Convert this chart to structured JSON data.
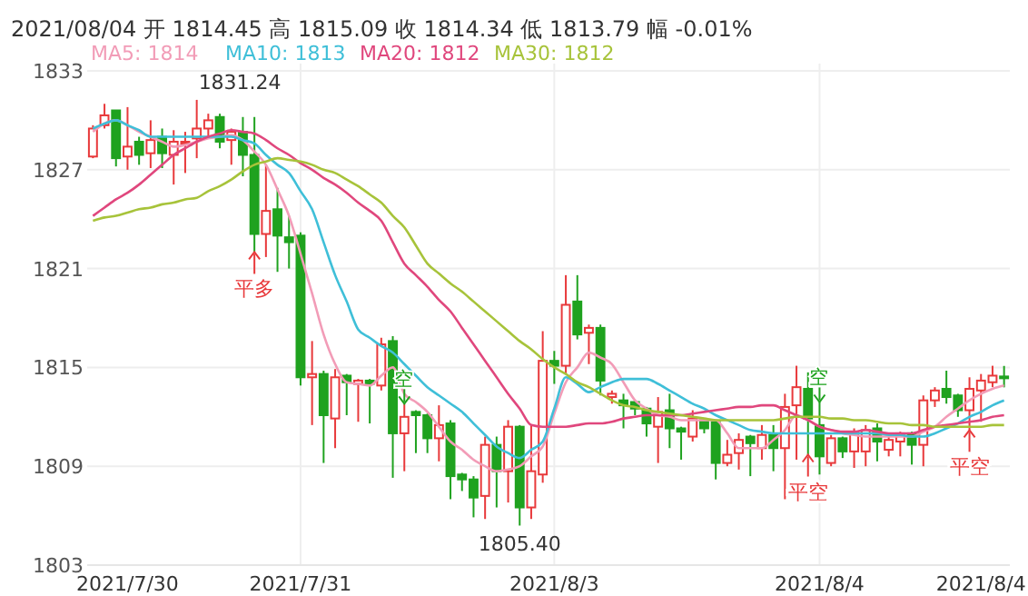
{
  "chart_data": {
    "type": "candlestick",
    "title": "2021/08/04 开 1814.45 高 1815.09 收 1814.34 低 1813.79 幅 -0.01%",
    "categories": [
      null,
      null,
      null,
      "2021/7/30",
      null,
      null,
      null,
      null,
      null,
      null,
      null,
      null,
      null,
      null,
      null,
      null,
      null,
      null,
      "2021/7/31",
      null,
      null,
      null,
      null,
      null,
      null,
      null,
      null,
      null,
      null,
      null,
      null,
      null,
      null,
      null,
      null,
      null,
      null,
      null,
      null,
      null,
      "2021/8/3",
      null,
      null,
      null,
      null,
      null,
      null,
      null,
      null,
      null,
      null,
      null,
      null,
      null,
      null,
      null,
      null,
      null,
      null,
      null,
      null,
      null,
      null,
      "2021/8/4",
      null,
      null,
      null,
      null,
      null,
      null,
      null,
      null,
      null,
      null,
      null,
      null,
      null,
      "2021/8/4",
      null,
      null
    ],
    "ylim": [
      1803,
      1833
    ],
    "yticks": [
      1803,
      1809,
      1815,
      1821,
      1827,
      1833
    ],
    "grid": "y",
    "legend": "top left",
    "ref_lines": [
      {
        "axis": "x",
        "value": "2021/7/31",
        "color": "#eeeeee"
      },
      {
        "axis": "x",
        "value": "2021/8/3",
        "color": "#eeeeee"
      },
      {
        "axis": "x",
        "value": "2021/8/4",
        "color": "#eeeeee"
      }
    ],
    "ohlc": [
      [
        1827.8,
        1829.7,
        1827.7,
        1829.5
      ],
      [
        1829.7,
        1831.0,
        1829.5,
        1830.3
      ],
      [
        1830.6,
        1830.6,
        1827.2,
        1827.7
      ],
      [
        1827.8,
        1830.8,
        1827.0,
        1828.4
      ],
      [
        1828.7,
        1829.0,
        1827.3,
        1827.9
      ],
      [
        1828.0,
        1830.0,
        1827.1,
        1828.8
      ],
      [
        1829.0,
        1829.5,
        1827.1,
        1828.0
      ],
      [
        1827.9,
        1829.4,
        1826.1,
        1828.7
      ],
      [
        1828.6,
        1829.3,
        1826.8,
        1828.7
      ],
      [
        1828.9,
        1831.24,
        1827.7,
        1829.5
      ],
      [
        1829.5,
        1830.4,
        1829.0,
        1830.0
      ],
      [
        1830.2,
        1830.4,
        1828.3,
        1828.7
      ],
      [
        1828.8,
        1829.5,
        1827.3,
        1829.3
      ],
      [
        1829.3,
        1830.2,
        1826.6,
        1827.9
      ],
      [
        1827.9,
        1830.2,
        1822.0,
        1823.1
      ],
      [
        1823.1,
        1827.3,
        1821.7,
        1824.5
      ],
      [
        1824.6,
        1825.9,
        1820.8,
        1823.0
      ],
      [
        1822.9,
        1824.2,
        1821.0,
        1822.6
      ],
      [
        1823.0,
        1823.2,
        1813.9,
        1814.4
      ],
      [
        1814.4,
        1816.6,
        1811.5,
        1814.6
      ],
      [
        1814.6,
        1814.8,
        1809.2,
        1812.1
      ],
      [
        1811.9,
        1814.9,
        1810.1,
        1814.4
      ],
      [
        1814.5,
        1814.6,
        1812.1,
        1814.1
      ],
      [
        1814.0,
        1814.3,
        1811.7,
        1814.2
      ],
      [
        1814.2,
        1814.3,
        1811.6,
        1814.0
      ],
      [
        1813.9,
        1816.8,
        1813.6,
        1816.4
      ],
      [
        1816.6,
        1816.9,
        1808.3,
        1811.0
      ],
      [
        1811.0,
        1812.8,
        1808.7,
        1812.0
      ],
      [
        1812.3,
        1812.4,
        1809.8,
        1812.1
      ],
      [
        1812.1,
        1812.2,
        1809.8,
        1810.7
      ],
      [
        1810.7,
        1812.7,
        1809.3,
        1811.5
      ],
      [
        1811.6,
        1811.8,
        1807.0,
        1808.4
      ],
      [
        1808.5,
        1808.6,
        1807.5,
        1808.2
      ],
      [
        1808.2,
        1808.4,
        1805.9,
        1807.1
      ],
      [
        1807.2,
        1810.8,
        1805.8,
        1810.3
      ],
      [
        1810.3,
        1810.8,
        1806.5,
        1808.7
      ],
      [
        1808.7,
        1811.8,
        1806.8,
        1811.4
      ],
      [
        1811.4,
        1811.5,
        1805.4,
        1806.5
      ],
      [
        1806.5,
        1811.5,
        1805.8,
        1808.7
      ],
      [
        1808.5,
        1817.2,
        1808.0,
        1815.4
      ],
      [
        1815.4,
        1816.0,
        1814.0,
        1815.1
      ],
      [
        1815.1,
        1820.6,
        1814.6,
        1818.8
      ],
      [
        1819.0,
        1820.6,
        1816.7,
        1817.0
      ],
      [
        1817.1,
        1817.6,
        1815.2,
        1817.4
      ],
      [
        1817.4,
        1817.6,
        1813.3,
        1814.2
      ],
      [
        1813.2,
        1813.6,
        1812.8,
        1813.4
      ],
      [
        1813.0,
        1813.4,
        1811.3,
        1812.7
      ],
      [
        1812.9,
        1813.0,
        1812.1,
        1812.5
      ],
      [
        1812.5,
        1812.6,
        1810.8,
        1811.6
      ],
      [
        1811.4,
        1813.2,
        1809.2,
        1812.3
      ],
      [
        1812.4,
        1813.4,
        1810.1,
        1811.3
      ],
      [
        1811.3,
        1811.4,
        1809.4,
        1811.1
      ],
      [
        1810.8,
        1812.4,
        1810.5,
        1811.9
      ],
      [
        1811.8,
        1811.9,
        1811.0,
        1811.3
      ],
      [
        1811.7,
        1811.8,
        1808.2,
        1809.2
      ],
      [
        1809.2,
        1810.6,
        1809.0,
        1809.7
      ],
      [
        1809.8,
        1811.0,
        1808.8,
        1810.6
      ],
      [
        1810.8,
        1810.9,
        1808.4,
        1810.4
      ],
      [
        1810.1,
        1811.5,
        1809.4,
        1810.9
      ],
      [
        1810.9,
        1811.5,
        1808.7,
        1810.1
      ],
      [
        1810.1,
        1813.4,
        1807.0,
        1812.6
      ],
      [
        1812.7,
        1815.1,
        1809.4,
        1813.8
      ],
      [
        1813.7,
        1814.7,
        1809.7,
        1811.9
      ],
      [
        1811.5,
        1812.9,
        1808.5,
        1809.6
      ],
      [
        1809.2,
        1810.9,
        1809.0,
        1810.7
      ],
      [
        1810.7,
        1810.8,
        1809.5,
        1809.9
      ],
      [
        1809.9,
        1811.3,
        1808.9,
        1811.1
      ],
      [
        1809.9,
        1811.5,
        1809.0,
        1811.2
      ],
      [
        1811.3,
        1811.6,
        1809.3,
        1810.5
      ],
      [
        1810.0,
        1810.8,
        1809.6,
        1810.6
      ],
      [
        1810.5,
        1811.1,
        1809.6,
        1811.0
      ],
      [
        1811.0,
        1811.1,
        1809.1,
        1810.3
      ],
      [
        1810.3,
        1813.3,
        1809.0,
        1813.0
      ],
      [
        1813.0,
        1813.8,
        1812.6,
        1813.6
      ],
      [
        1813.7,
        1814.8,
        1812.8,
        1813.2
      ],
      [
        1813.3,
        1813.4,
        1812.0,
        1812.4
      ],
      [
        1812.4,
        1814.4,
        1811.2,
        1813.7
      ],
      [
        1813.6,
        1814.6,
        1811.7,
        1814.2
      ],
      [
        1814.1,
        1815.1,
        1813.8,
        1814.5
      ],
      [
        1814.45,
        1815.09,
        1813.79,
        1814.34
      ]
    ],
    "series": [
      {
        "type": "line",
        "name": "MA5: 1814",
        "color": "#f29cb7",
        "values": [
          1829.3,
          1829.8,
          1830.0,
          1829.7,
          1829.3,
          1829.0,
          1828.7,
          1828.4,
          1828.5,
          1828.7,
          1828.9,
          1829.0,
          1829.1,
          1828.8,
          1828.1,
          1827.3,
          1825.8,
          1824.2,
          1821.9,
          1819.5,
          1817.0,
          1815.2,
          1814.1,
          1814.0,
          1813.9,
          1814.5,
          1815.0,
          1813.4,
          1812.9,
          1812.3,
          1811.4,
          1810.5,
          1810.0,
          1809.4,
          1809.0,
          1808.7,
          1808.8,
          1809.0,
          1809.6,
          1810.2,
          1812.2,
          1814.1,
          1815.0,
          1815.9,
          1815.6,
          1815.2,
          1814.1,
          1813.0,
          1812.5,
          1812.1,
          1812.0,
          1811.8,
          1811.8,
          1811.8,
          1811.8,
          1811.0,
          1810.1,
          1810.1,
          1810.1,
          1810.6,
          1811.2,
          1812.1,
          1811.8,
          1811.4,
          1811.2,
          1811.0,
          1810.9,
          1810.8,
          1810.8,
          1810.8,
          1810.8,
          1810.8,
          1811.1,
          1811.4,
          1812.0,
          1812.5,
          1813.0,
          1813.4,
          1813.7,
          1813.9
        ]
      },
      {
        "type": "line",
        "name": "MA10: 1813",
        "color": "#3fbfd8",
        "values": [
          1829.5,
          1829.8,
          1830.0,
          1829.7,
          1829.4,
          1829.0,
          1829.0,
          1829.0,
          1829.0,
          1829.0,
          1829.0,
          1829.0,
          1829.0,
          1828.8,
          1828.6,
          1827.9,
          1827.3,
          1826.8,
          1825.7,
          1824.6,
          1822.6,
          1820.6,
          1819.0,
          1817.3,
          1816.8,
          1816.3,
          1815.9,
          1815.2,
          1814.5,
          1813.8,
          1813.3,
          1812.8,
          1812.3,
          1811.6,
          1810.9,
          1810.2,
          1809.8,
          1809.5,
          1810.0,
          1810.5,
          1812.5,
          1814.4,
          1814.0,
          1813.5,
          1813.8,
          1814.1,
          1814.3,
          1814.3,
          1814.3,
          1814.0,
          1813.6,
          1813.2,
          1812.8,
          1812.5,
          1812.1,
          1811.8,
          1811.5,
          1811.2,
          1811.1,
          1811.0,
          1811.0,
          1811.0,
          1811.0,
          1811.0,
          1811.0,
          1811.0,
          1811.0,
          1811.0,
          1811.0,
          1810.9,
          1810.9,
          1810.8,
          1810.8,
          1811.0,
          1811.3,
          1811.6,
          1812.0,
          1812.3,
          1812.7,
          1813.0
        ]
      },
      {
        "type": "line",
        "name": "MA20: 1812",
        "color": "#e0477d",
        "values": [
          1824.2,
          1824.7,
          1825.2,
          1825.6,
          1826.1,
          1826.7,
          1827.3,
          1827.9,
          1828.3,
          1828.7,
          1829.0,
          1829.2,
          1829.4,
          1829.3,
          1829.2,
          1828.8,
          1828.3,
          1827.9,
          1827.4,
          1827.0,
          1826.5,
          1826.1,
          1825.6,
          1825.0,
          1824.5,
          1823.9,
          1822.6,
          1821.3,
          1820.6,
          1819.9,
          1819.1,
          1818.4,
          1817.4,
          1816.4,
          1815.4,
          1814.4,
          1813.4,
          1812.5,
          1811.5,
          1811.4,
          1811.4,
          1811.4,
          1811.5,
          1811.6,
          1811.6,
          1811.7,
          1811.9,
          1812.0,
          1812.1,
          1812.1,
          1812.1,
          1812.1,
          1812.2,
          1812.3,
          1812.4,
          1812.5,
          1812.6,
          1812.6,
          1812.7,
          1812.7,
          1812.4,
          1812.1,
          1811.8,
          1811.4,
          1811.2,
          1811.1,
          1811.1,
          1811.2,
          1811.1,
          1811.0,
          1811.0,
          1811.0,
          1811.2,
          1811.4,
          1811.5,
          1811.6,
          1811.7,
          1811.8,
          1812.0,
          1812.1
        ]
      },
      {
        "type": "line",
        "name": "MA30: 1812",
        "color": "#a7c33a",
        "values": [
          1823.9,
          1824.1,
          1824.2,
          1824.4,
          1824.6,
          1824.7,
          1824.9,
          1825.0,
          1825.2,
          1825.3,
          1825.7,
          1826.0,
          1826.4,
          1826.9,
          1827.3,
          1827.5,
          1827.7,
          1827.6,
          1827.5,
          1827.3,
          1827.0,
          1826.8,
          1826.4,
          1826.0,
          1825.5,
          1825.0,
          1824.2,
          1823.5,
          1822.4,
          1821.3,
          1820.7,
          1820.1,
          1819.6,
          1819.0,
          1818.4,
          1817.8,
          1817.2,
          1816.6,
          1816.1,
          1815.5,
          1815.0,
          1814.6,
          1814.1,
          1813.8,
          1813.4,
          1813.0,
          1812.7,
          1812.6,
          1812.4,
          1812.3,
          1812.2,
          1812.1,
          1812.0,
          1811.9,
          1811.8,
          1811.8,
          1811.8,
          1811.8,
          1811.8,
          1811.8,
          1811.9,
          1812.0,
          1812.0,
          1812.0,
          1811.9,
          1811.9,
          1811.8,
          1811.8,
          1811.7,
          1811.6,
          1811.6,
          1811.5,
          1811.5,
          1811.4,
          1811.4,
          1811.4,
          1811.4,
          1811.4,
          1811.5,
          1811.5
        ]
      }
    ],
    "annotations": [
      "1831.24",
      {
        "text": "1805.40",
        "y": 1805.4
      },
      {
        "text": "平多",
        "y": 1822.0
      },
      {
        "text": "空",
        "y": 1812.8
      },
      {
        "text": "平空",
        "y": 1809.7
      },
      {
        "text": "空",
        "y": 1812.9
      },
      {
        "text": "平空",
        "y": 1811.2
      }
    ]
  }
}
